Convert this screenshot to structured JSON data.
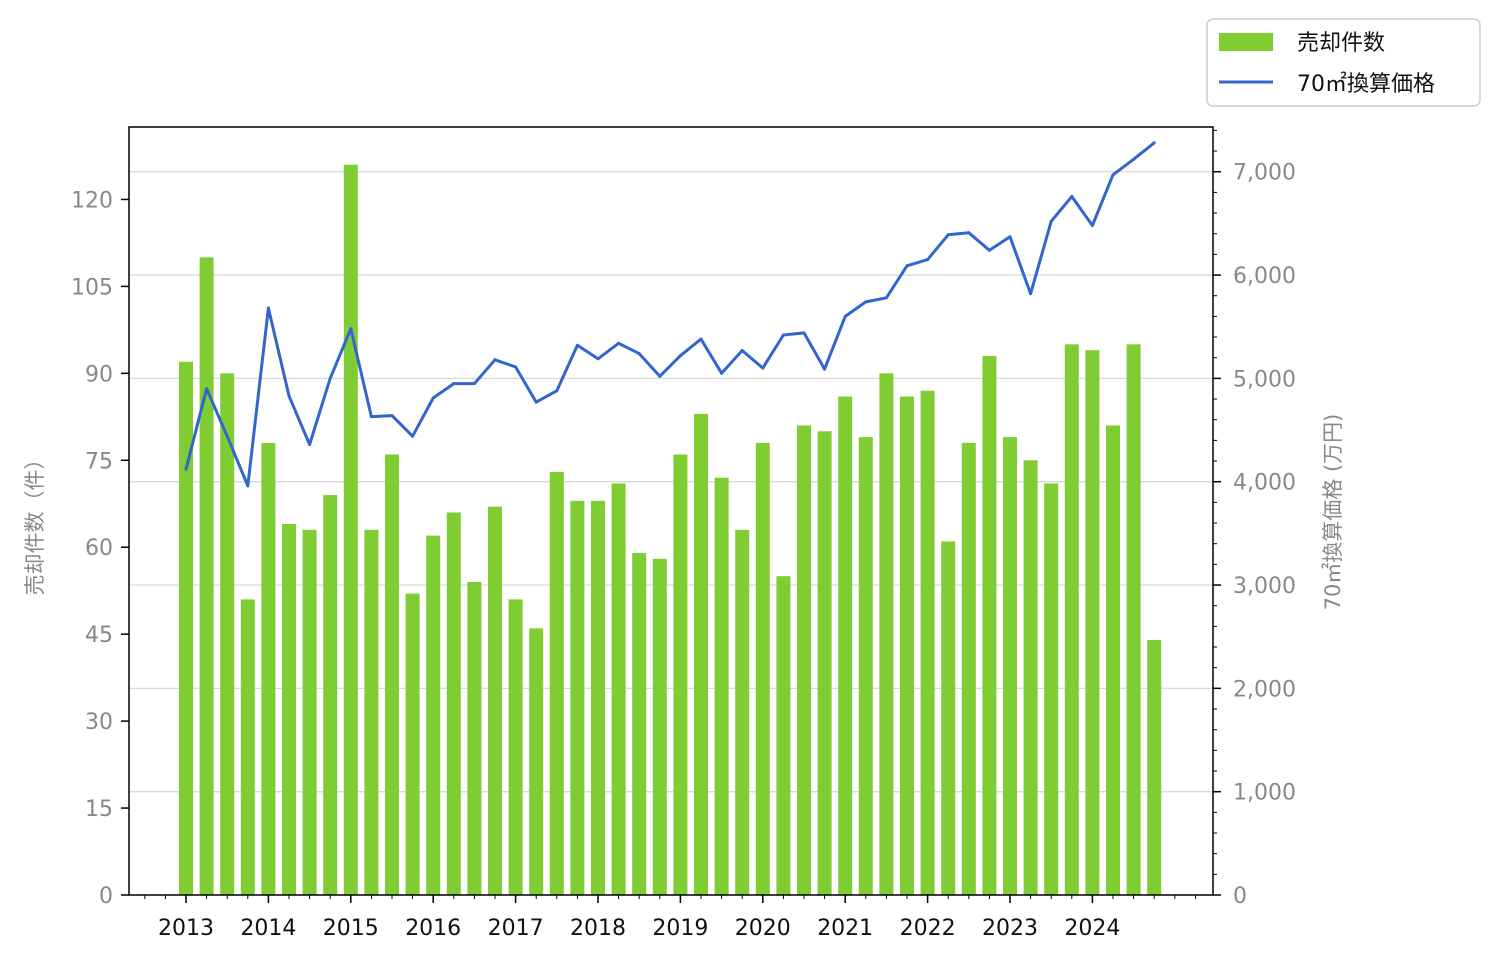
{
  "chart_data": {
    "type": "bar+line",
    "x": [
      "2013 Q1",
      "2013 Q2",
      "2013 Q3",
      "2013 Q4",
      "2014 Q1",
      "2014 Q2",
      "2014 Q3",
      "2014 Q4",
      "2015 Q1",
      "2015 Q2",
      "2015 Q3",
      "2015 Q4",
      "2016 Q1",
      "2016 Q2",
      "2016 Q3",
      "2016 Q4",
      "2017 Q1",
      "2017 Q2",
      "2017 Q3",
      "2017 Q4",
      "2018 Q1",
      "2018 Q2",
      "2018 Q3",
      "2018 Q4",
      "2019 Q1",
      "2019 Q2",
      "2019 Q3",
      "2019 Q4",
      "2020 Q1",
      "2020 Q2",
      "2020 Q3",
      "2020 Q4",
      "2021 Q1",
      "2021 Q2",
      "2021 Q3",
      "2021 Q4",
      "2022 Q1",
      "2022 Q2",
      "2022 Q3",
      "2022 Q4",
      "2023 Q1",
      "2023 Q2",
      "2023 Q3",
      "2023 Q4",
      "2024 Q1",
      "2024 Q2",
      "2024 Q3",
      "2024 Q4"
    ],
    "x_tick_labels": [
      "2013",
      "2014",
      "2015",
      "2016",
      "2017",
      "2018",
      "2019",
      "2020",
      "2021",
      "2022",
      "2023",
      "2024"
    ],
    "series": [
      {
        "name": "売却件数",
        "type": "bar",
        "axis": "left",
        "color": "#80cc33",
        "values": [
          92,
          110,
          90,
          51,
          78,
          64,
          63,
          69,
          126,
          63,
          76,
          52,
          62,
          66,
          54,
          67,
          51,
          46,
          73,
          68,
          68,
          71,
          59,
          58,
          76,
          83,
          72,
          63,
          78,
          55,
          81,
          80,
          86,
          79,
          90,
          86,
          87,
          61,
          78,
          93,
          79,
          75,
          71,
          95,
          94,
          81,
          95,
          44
        ]
      },
      {
        "name": "70㎡換算価格",
        "type": "line",
        "axis": "right",
        "color": "#3366cc",
        "values": [
          4120,
          4900,
          4440,
          3960,
          5680,
          4830,
          4360,
          5000,
          5480,
          4630,
          4640,
          4440,
          4810,
          4950,
          4950,
          5180,
          5110,
          4770,
          4880,
          5320,
          5190,
          5340,
          5240,
          5020,
          5220,
          5380,
          5050,
          5270,
          5100,
          5420,
          5440,
          5090,
          5600,
          5740,
          5780,
          6090,
          6150,
          6390,
          6410,
          6240,
          6370,
          5820,
          6520,
          6760,
          6480,
          6970,
          7120,
          7280
        ]
      }
    ],
    "y_left": {
      "label": "売却件数（件）",
      "ticks": [
        "0",
        "15",
        "30",
        "45",
        "60",
        "75",
        "90",
        "105",
        "120"
      ],
      "min": 0,
      "max": 132.5
    },
    "y_right": {
      "label": "70㎡換算価格 (万円)",
      "ticks": [
        "0",
        "1,000",
        "2,000",
        "3,000",
        "4,000",
        "5,000",
        "6,000",
        "7,000"
      ],
      "min": 0,
      "max": 7433
    },
    "legend": "top-right",
    "grid": "horizontal, right axis"
  }
}
